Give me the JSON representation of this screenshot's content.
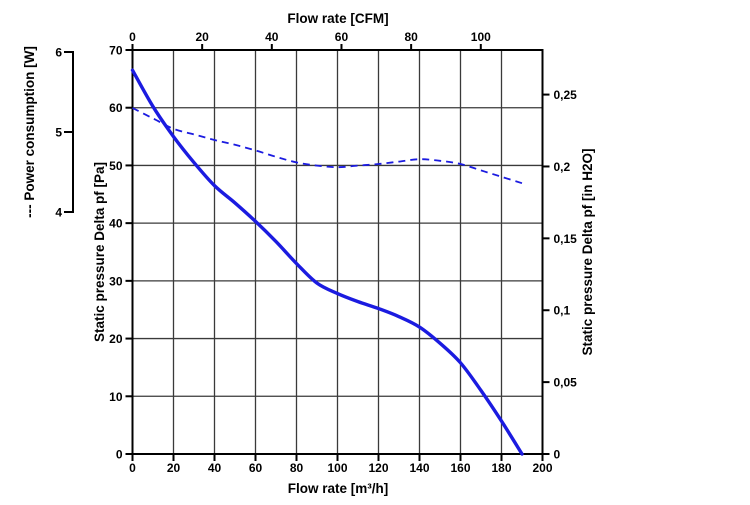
{
  "chart_data": {
    "type": "line",
    "title": "",
    "grid": true,
    "legend_position": "none",
    "axes": {
      "bottom": {
        "label": "Flow rate [m³/h]",
        "range": [
          0,
          200
        ],
        "ticks": [
          0,
          20,
          40,
          60,
          80,
          100,
          120,
          140,
          160,
          180,
          200
        ]
      },
      "top": {
        "label": "Flow rate [CFM]",
        "ticks": [
          0,
          20,
          40,
          60,
          80,
          100
        ],
        "m3h_per_cfm": 1.699
      },
      "left": {
        "label": "Static pressure Delta pf [Pa]",
        "range": [
          0,
          70
        ],
        "ticks": [
          0,
          10,
          20,
          30,
          40,
          50,
          60,
          70
        ]
      },
      "right": {
        "label": "Static pressure Delta pf [in H2O]",
        "tick_labels": [
          "0",
          "0,05",
          "0,1",
          "0,15",
          "0,2",
          "0,25"
        ],
        "tick_values": [
          0,
          0.05,
          0.1,
          0.15,
          0.2,
          0.25
        ],
        "pa_per_inh2o": 249.1
      },
      "power": {
        "label": "--- Power consumption [W]",
        "range": [
          4,
          6
        ],
        "ticks": [
          6,
          5,
          4
        ]
      }
    },
    "series": [
      {
        "name": "static-pressure-curve",
        "style": "solid",
        "x_m3h": [
          0,
          10,
          20,
          30,
          40,
          50,
          60,
          70,
          80,
          90,
          100,
          110,
          120,
          130,
          140,
          150,
          160,
          170,
          180,
          190
        ],
        "pressure_pa": [
          66.5,
          60.2,
          55.0,
          50.5,
          46.5,
          43.5,
          40.3,
          36.8,
          33.0,
          29.6,
          27.8,
          26.4,
          25.2,
          23.8,
          22.0,
          19.2,
          15.8,
          11.0,
          5.7,
          0
        ]
      },
      {
        "name": "power-consumption-curve",
        "style": "dashed",
        "x_m3h": [
          0,
          10,
          20,
          30,
          40,
          50,
          60,
          70,
          80,
          90,
          100,
          110,
          120,
          130,
          140,
          150,
          160,
          170,
          180,
          190
        ],
        "power_w": [
          5.3,
          5.17,
          5.04,
          4.97,
          4.9,
          4.84,
          4.77,
          4.69,
          4.62,
          4.58,
          4.56,
          4.58,
          4.6,
          4.63,
          4.66,
          4.64,
          4.6,
          4.52,
          4.44,
          4.36
        ]
      }
    ],
    "colors": {
      "curve": "#1b1be0",
      "grid": "#3a3a3a",
      "axis": "#000000",
      "background": "#ffffff"
    }
  }
}
